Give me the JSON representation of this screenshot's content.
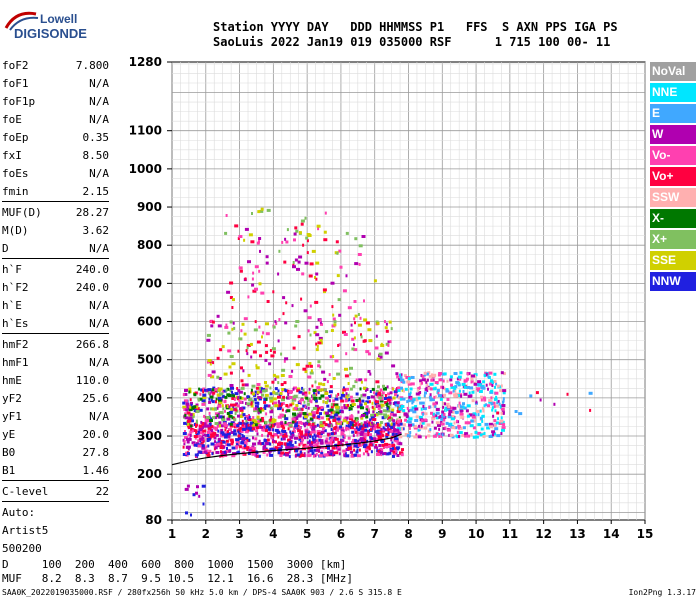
{
  "logo": {
    "line1": "Lowell",
    "line2": "DIGISONDE"
  },
  "header": {
    "labels": "Station YYYY DAY   DDD HHMMSS P1   FFS  S AXN PPS IGA PS",
    "values": "SaoLuis 2022 Jan19 019 035000 RSF      1 715 100 00- 11"
  },
  "params": {
    "group1": [
      {
        "k": "foF2",
        "v": "7.800"
      },
      {
        "k": "foF1",
        "v": "N/A"
      },
      {
        "k": "foF1p",
        "v": "N/A"
      },
      {
        "k": "foE",
        "v": "N/A"
      },
      {
        "k": "foEp",
        "v": "0.35"
      },
      {
        "k": "fxI",
        "v": "8.50"
      },
      {
        "k": "foEs",
        "v": "N/A"
      },
      {
        "k": "fmin",
        "v": "2.15"
      }
    ],
    "group2": [
      {
        "k": "MUF(D)",
        "v": "28.27"
      },
      {
        "k": "M(D)",
        "v": "3.62"
      },
      {
        "k": "D",
        "v": "N/A"
      }
    ],
    "group3": [
      {
        "k": "h`F",
        "v": "240.0"
      },
      {
        "k": "h`F2",
        "v": "240.0"
      },
      {
        "k": "h`E",
        "v": "N/A"
      },
      {
        "k": "h`Es",
        "v": "N/A"
      }
    ],
    "group4": [
      {
        "k": "hmF2",
        "v": "266.8"
      },
      {
        "k": "hmF1",
        "v": "N/A"
      },
      {
        "k": "hmE",
        "v": "110.0"
      },
      {
        "k": "yF2",
        "v": "25.6"
      },
      {
        "k": "yF1",
        "v": "N/A"
      },
      {
        "k": "yE",
        "v": "20.0"
      },
      {
        "k": "B0",
        "v": "27.8"
      },
      {
        "k": "B1",
        "v": "1.46"
      }
    ],
    "group5": [
      {
        "k": "C-level",
        "v": "22"
      }
    ],
    "auto": [
      "Auto:",
      "Artist5",
      "500200"
    ]
  },
  "legend": [
    {
      "label": "NoVal",
      "color": "#a0a0a0"
    },
    {
      "label": "NNE",
      "color": "#00e6ff"
    },
    {
      "label": "E",
      "color": "#40a8ff"
    },
    {
      "label": "W",
      "color": "#b000b0"
    },
    {
      "label": "Vo-",
      "color": "#ff40b0"
    },
    {
      "label": "Vo+",
      "color": "#ff0040"
    },
    {
      "label": "SSW",
      "color": "#ffb0b0"
    },
    {
      "label": "X-",
      "color": "#007800"
    },
    {
      "label": "X+",
      "color": "#80c060"
    },
    {
      "label": "SSE",
      "color": "#d0d000"
    },
    {
      "label": "NNW",
      "color": "#2020e0"
    }
  ],
  "chart_data": {
    "type": "scatter",
    "title": "",
    "xlabel": "",
    "ylabel": "",
    "xlim": [
      1,
      15
    ],
    "ylim": [
      80,
      1280
    ],
    "x_ticks": [
      1,
      2,
      3,
      4,
      5,
      6,
      7,
      8,
      9,
      10,
      11,
      12,
      13,
      14,
      15
    ],
    "y_ticks": [
      80,
      200,
      300,
      400,
      500,
      600,
      700,
      800,
      900,
      1000,
      1100,
      1280
    ],
    "grid": true,
    "legend_position": "right",
    "trace": {
      "name": "",
      "x": [
        1.0,
        1.5,
        2.0,
        2.5,
        3.0,
        3.5,
        4.0,
        4.5,
        5.0,
        5.5,
        6.0,
        6.5,
        7.0,
        7.5,
        7.8
      ],
      "y": [
        225,
        235,
        243,
        249,
        254,
        258,
        262,
        265,
        268,
        272,
        276,
        281,
        287,
        295,
        305
      ]
    },
    "clusters": [
      {
        "x": [
          1.3,
          7.8
        ],
        "y": [
          250,
          340
        ],
        "colors": [
          "#ff0040",
          "#b000b0",
          "#2020e0",
          "#ff40b0"
        ],
        "n": 900
      },
      {
        "x": [
          1.3,
          7.8
        ],
        "y": [
          330,
          430
        ],
        "colors": [
          "#2020e0",
          "#b000b0",
          "#ff40b0",
          "#007800",
          "#80c060",
          "#d0d000",
          "#ff0040"
        ],
        "n": 800
      },
      {
        "x": [
          7.6,
          10.8
        ],
        "y": [
          300,
          470
        ],
        "colors": [
          "#40a8ff",
          "#00e6ff",
          "#b000b0",
          "#ff40b0",
          "#ffb0b0"
        ],
        "n": 500
      },
      {
        "x": [
          2.0,
          7.5
        ],
        "y": [
          430,
          620
        ],
        "colors": [
          "#ff40b0",
          "#b000b0",
          "#d0d000",
          "#80c060",
          "#ff0040"
        ],
        "n": 220
      },
      {
        "x": [
          2.5,
          7.0
        ],
        "y": [
          620,
          900
        ],
        "colors": [
          "#b000b0",
          "#ff40b0",
          "#80c060",
          "#d0d000",
          "#ff0040"
        ],
        "n": 120
      },
      {
        "x": [
          10.5,
          14.0
        ],
        "y": [
          360,
          420
        ],
        "colors": [
          "#40a8ff",
          "#ff0040",
          "#b000b0"
        ],
        "n": 12
      },
      {
        "x": [
          1.3,
          2.0
        ],
        "y": [
          90,
          180
        ],
        "colors": [
          "#2020e0",
          "#b000b0"
        ],
        "n": 10
      }
    ]
  },
  "d_muf": {
    "d_label": "D",
    "d_values": [
      "100",
      "200",
      "400",
      "600",
      "800",
      "1000",
      "1500",
      "3000"
    ],
    "d_unit": "[km]",
    "muf_label": "MUF",
    "muf_values": [
      "8.2",
      "8.3",
      "8.7",
      "9.5",
      "10.5",
      "12.1",
      "16.6",
      "28.3"
    ],
    "muf_unit": "[MHz]"
  },
  "footer": {
    "left": "SAA0K_2022019035000.RSF / 280fx256h 50 kHz 5.0 km / DPS-4 SAA0K 903 / 2.6 S 315.8 E",
    "right": "Ion2Png 1.3.17"
  }
}
